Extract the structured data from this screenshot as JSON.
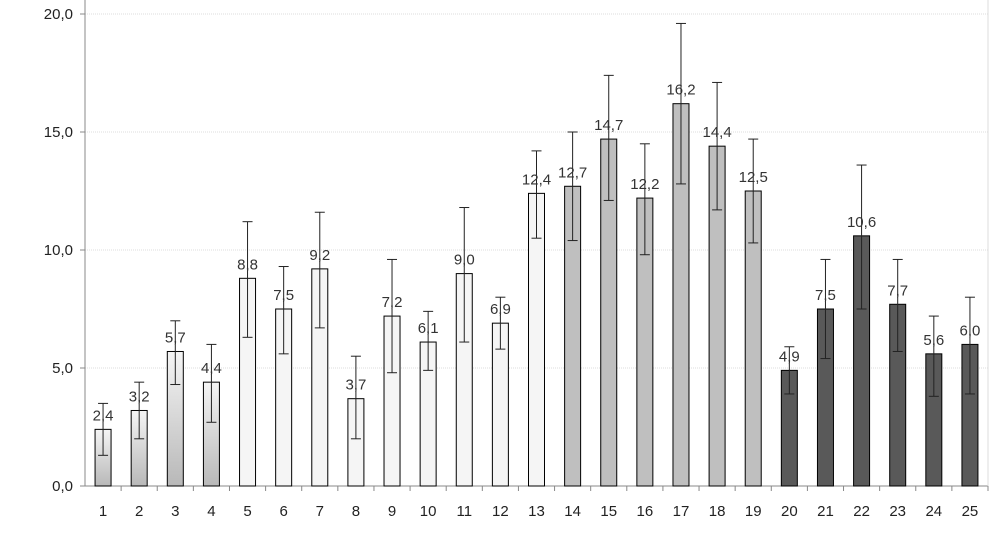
{
  "chart_data": {
    "type": "bar",
    "categories": [
      "1",
      "2",
      "3",
      "4",
      "5",
      "6",
      "7",
      "8",
      "9",
      "10",
      "11",
      "12",
      "13",
      "14",
      "15",
      "16",
      "17",
      "18",
      "19",
      "20",
      "21",
      "22",
      "23",
      "24",
      "25"
    ],
    "series": [
      {
        "values": [
          2.4,
          3.2,
          5.7,
          4.4,
          8.8,
          7.5,
          9.2,
          3.7,
          7.2,
          6.1,
          9.0,
          6.9,
          12.4,
          12.7,
          14.7,
          12.2,
          16.2,
          14.4,
          12.5,
          4.9,
          7.5,
          10.6,
          7.7,
          5.6,
          6.0
        ],
        "error_low": [
          1.3,
          2.0,
          4.3,
          2.7,
          6.3,
          5.6,
          6.7,
          2.0,
          4.8,
          4.9,
          6.1,
          5.8,
          10.5,
          10.4,
          12.1,
          9.8,
          12.8,
          11.7,
          10.3,
          3.9,
          5.4,
          7.5,
          5.7,
          3.8,
          3.9
        ],
        "error_high": [
          3.5,
          4.4,
          7.0,
          6.0,
          11.2,
          9.3,
          11.6,
          5.5,
          9.6,
          7.4,
          11.8,
          8.0,
          14.2,
          15.0,
          17.4,
          14.5,
          19.6,
          17.1,
          14.7,
          5.9,
          9.6,
          13.6,
          9.6,
          7.2,
          8.0
        ],
        "data_labels": [
          "2,4",
          "3,2",
          "5,7",
          "4,4",
          "8,8",
          "7,5",
          "9,2",
          "3,7",
          "7,2",
          "6,1",
          "9,0",
          "6,9",
          "12,4",
          "12,7",
          "14,7",
          "12,2",
          "16,2",
          "14,4",
          "12,5",
          "4,9",
          "7,5",
          "10,6",
          "7,7",
          "5,6",
          "6,0"
        ],
        "fill_styles": [
          "gradient",
          "gradient",
          "gradient",
          "gradient",
          "light",
          "light",
          "light",
          "light",
          "light",
          "light",
          "light",
          "light",
          "light",
          "mid",
          "mid",
          "mid",
          "mid",
          "mid",
          "mid",
          "dark",
          "dark",
          "dark",
          "dark",
          "dark",
          "dark"
        ]
      }
    ],
    "ylim": [
      0,
      20
    ],
    "yticks": [
      0,
      5,
      10,
      15,
      20
    ],
    "ytick_labels": [
      "0,0",
      "5,0",
      "10,0",
      "15,0",
      "20,0"
    ],
    "grid": true,
    "colors": {
      "light": "#f5f5f5",
      "mid": "#bfbfbf",
      "dark": "#595959",
      "gradient_light": "#f5f5f5",
      "gradient_dark": "#b8b8b8",
      "outline": "#000000",
      "grid": "#dcdcdc",
      "axis": "#888888"
    }
  }
}
